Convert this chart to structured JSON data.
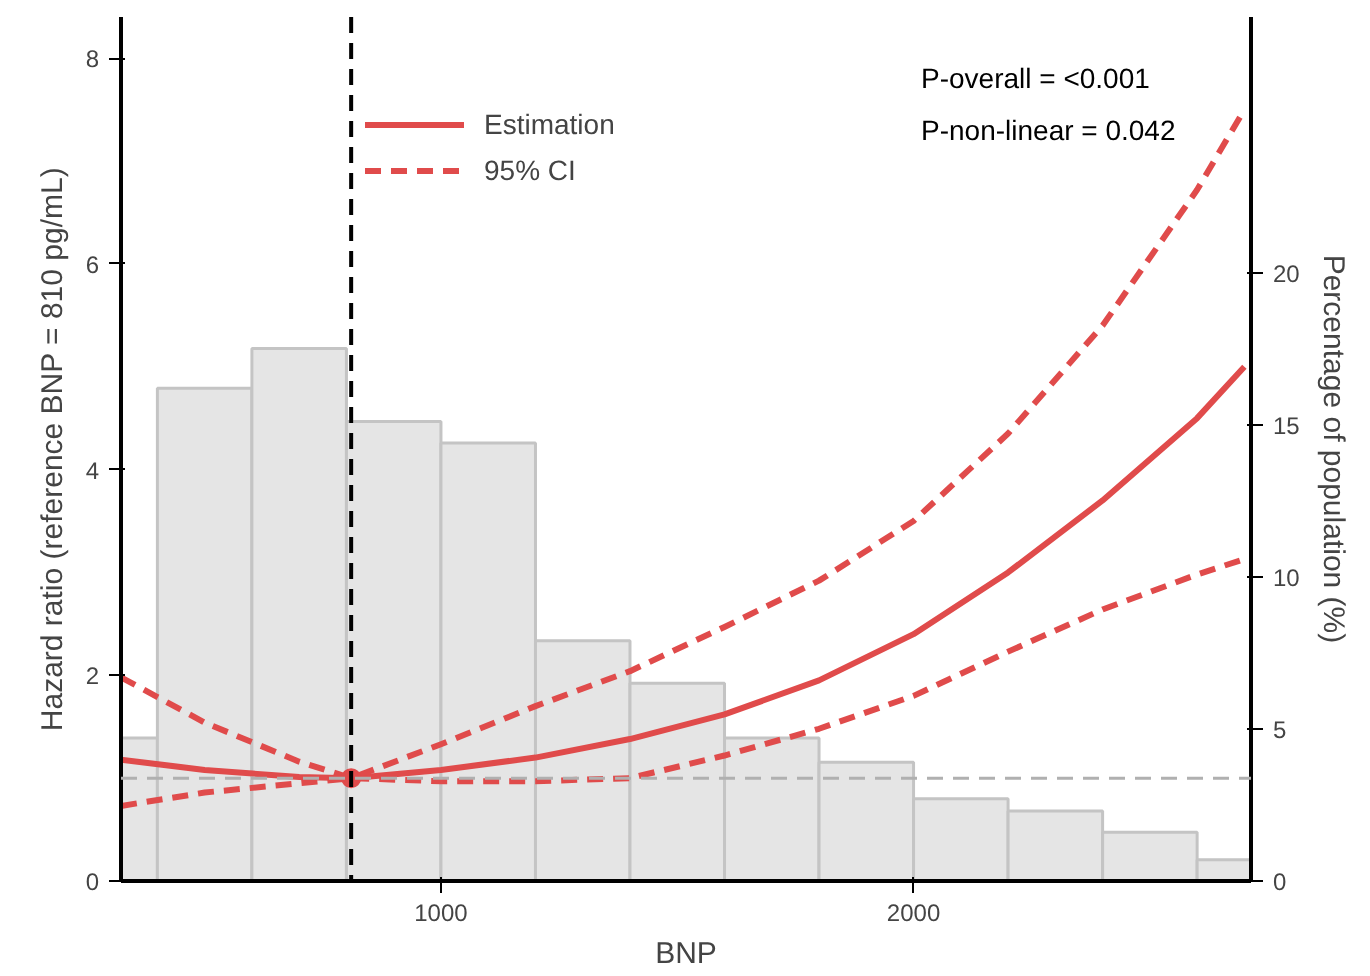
{
  "chart_data": {
    "type": "line",
    "xlabel": "BNP",
    "ylabel": "Hazard ratio (reference BNP = 810 pg/mL)",
    "y2label": "Percentage of population (%)",
    "x": [
      323,
      500,
      700,
      810,
      1000,
      1200,
      1400,
      1600,
      1800,
      2000,
      2200,
      2400,
      2600,
      2700
    ],
    "series": [
      {
        "type": "histogram",
        "axis": "y2",
        "color": "#e5e5e5",
        "bins": [
          323,
          400,
          600,
          800,
          1000,
          1200,
          1400,
          1600,
          1800,
          2000,
          2200,
          2400,
          2600,
          2714
        ],
        "values": [
          4.7,
          16.2,
          17.5,
          15.1,
          14.4,
          7.9,
          6.5,
          4.7,
          3.9,
          2.7,
          2.3,
          1.6,
          0.7
        ]
      },
      {
        "name": "Estimation",
        "color": "#e04b4b",
        "line_style": "solid",
        "values": [
          1.18,
          1.08,
          1.01,
          1.0,
          1.08,
          1.2,
          1.38,
          1.62,
          1.95,
          2.4,
          3.0,
          3.7,
          4.5,
          5.0
        ]
      },
      {
        "name": "95% CI",
        "color": "#e04b4b",
        "line_style": "dashed",
        "values": [
          1.98,
          1.54,
          1.16,
          1.0,
          1.33,
          1.7,
          2.04,
          2.47,
          2.92,
          3.5,
          4.35,
          5.4,
          6.72,
          7.5
        ]
      },
      {
        "color": "#e04b4b",
        "line_style": "dashed",
        "values": [
          0.73,
          0.86,
          0.95,
          1.0,
          0.97,
          0.97,
          1.0,
          1.22,
          1.48,
          1.8,
          2.23,
          2.64,
          2.98,
          3.13
        ]
      },
      {
        "type": "scatter",
        "marker": "circle",
        "color": "#e04b4b",
        "x": [
          810
        ],
        "values": [
          1.0
        ]
      }
    ],
    "xlim": [
      323,
      2714
    ],
    "xticks": [
      1000,
      2000
    ],
    "ylim": [
      0,
      8.4
    ],
    "yticks": [
      0,
      2,
      4,
      6,
      8
    ],
    "y2lim": [
      0,
      28.4
    ],
    "y2ticks": [
      0,
      5,
      10,
      15,
      20
    ],
    "ref_lines": [
      {
        "axis": "x",
        "value": 810,
        "color": "#000000",
        "line_style": "dashed"
      },
      {
        "axis": "y",
        "value": 1,
        "color": "#b0b0b0",
        "line_style": "dashed"
      }
    ],
    "annotations": [
      "P-overall = <0.001",
      "P-non-linear = 0.042"
    ],
    "legend": "top left",
    "grid": false
  }
}
